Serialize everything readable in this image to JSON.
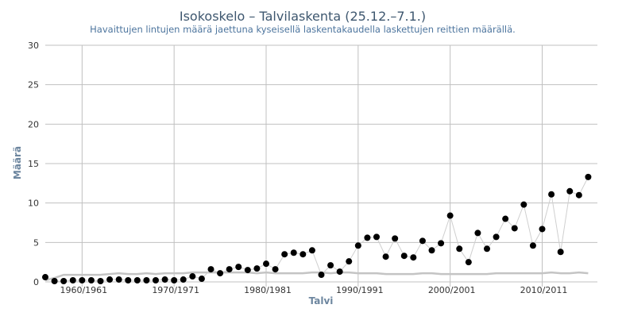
{
  "chart_data": {
    "type": "scatter",
    "title": "Isokoskelo – Talvilaskenta (25.12.–7.1.)",
    "subtitle": "Havaittujen lintujen määrä jaettuna kyseisellä laskentakaudella laskettujen reittien määrällä.",
    "xlabel": "Talvi",
    "ylabel": "Määrä",
    "ylim": [
      0,
      30
    ],
    "yticks": [
      0,
      5,
      10,
      15,
      20,
      25,
      30
    ],
    "xlim": [
      1956,
      2016
    ],
    "xticks": [
      {
        "x": 1960,
        "label": "1960/1961"
      },
      {
        "x": 1970,
        "label": "1970/1971"
      },
      {
        "x": 1980,
        "label": "1980/1981"
      },
      {
        "x": 1990,
        "label": "1990/1991"
      },
      {
        "x": 2000,
        "label": "2000/2001"
      },
      {
        "x": 2010,
        "label": "2010/2011"
      }
    ],
    "grid": true,
    "series": [
      {
        "values": [
          [
            1956,
            0.6
          ],
          [
            1957,
            0.1
          ],
          [
            1958,
            0.1
          ],
          [
            1959,
            0.2
          ],
          [
            1960,
            0.2
          ],
          [
            1961,
            0.2
          ],
          [
            1962,
            0.1
          ],
          [
            1963,
            0.3
          ],
          [
            1964,
            0.3
          ],
          [
            1965,
            0.2
          ],
          [
            1966,
            0.2
          ],
          [
            1967,
            0.2
          ],
          [
            1968,
            0.2
          ],
          [
            1969,
            0.3
          ],
          [
            1970,
            0.2
          ],
          [
            1971,
            0.3
          ],
          [
            1972,
            0.7
          ],
          [
            1973,
            0.4
          ],
          [
            1974,
            1.6
          ],
          [
            1975,
            1.1
          ],
          [
            1976,
            1.6
          ],
          [
            1977,
            1.9
          ],
          [
            1978,
            1.5
          ],
          [
            1979,
            1.7
          ],
          [
            1980,
            2.3
          ],
          [
            1981,
            1.6
          ],
          [
            1982,
            3.5
          ],
          [
            1983,
            3.7
          ],
          [
            1984,
            3.5
          ],
          [
            1985,
            4.0
          ],
          [
            1986,
            0.9
          ],
          [
            1987,
            2.1
          ],
          [
            1988,
            1.3
          ],
          [
            1989,
            2.6
          ],
          [
            1990,
            4.6
          ],
          [
            1991,
            5.6
          ],
          [
            1992,
            5.7
          ],
          [
            1993,
            3.2
          ],
          [
            1994,
            5.5
          ],
          [
            1995,
            3.3
          ],
          [
            1996,
            3.1
          ],
          [
            1997,
            5.2
          ],
          [
            1998,
            4.0
          ],
          [
            1999,
            4.9
          ],
          [
            2000,
            8.4
          ],
          [
            2001,
            4.2
          ],
          [
            2002,
            2.5
          ],
          [
            2003,
            6.2
          ],
          [
            2004,
            4.2
          ],
          [
            2005,
            5.7
          ],
          [
            2006,
            8.0
          ],
          [
            2007,
            6.8
          ],
          [
            2008,
            9.8
          ],
          [
            2009,
            4.6
          ],
          [
            2010,
            6.7
          ],
          [
            2011,
            11.1
          ],
          [
            2012,
            3.8
          ],
          [
            2013,
            11.5
          ],
          [
            2014,
            11.0
          ],
          [
            2015,
            13.3
          ]
        ]
      },
      {
        "values": [
          [
            1956,
            0.2
          ],
          [
            1957,
            0.5
          ],
          [
            1958,
            0.9
          ],
          [
            1959,
            0.9
          ],
          [
            1960,
            0.9
          ],
          [
            1961,
            0.9
          ],
          [
            1962,
            0.9
          ],
          [
            1963,
            1.0
          ],
          [
            1964,
            1.1
          ],
          [
            1965,
            1.0
          ],
          [
            1966,
            1.0
          ],
          [
            1967,
            1.1
          ],
          [
            1968,
            1.0
          ],
          [
            1969,
            1.1
          ],
          [
            1970,
            1.1
          ],
          [
            1971,
            1.1
          ],
          [
            1972,
            1.2
          ],
          [
            1973,
            1.2
          ],
          [
            1974,
            1.2
          ],
          [
            1975,
            1.2
          ],
          [
            1976,
            1.2
          ],
          [
            1977,
            1.2
          ],
          [
            1978,
            1.2
          ],
          [
            1979,
            1.1
          ],
          [
            1980,
            1.2
          ],
          [
            1981,
            1.1
          ],
          [
            1982,
            1.1
          ],
          [
            1983,
            1.1
          ],
          [
            1984,
            1.1
          ],
          [
            1985,
            1.2
          ],
          [
            1986,
            1.2
          ],
          [
            1987,
            1.1
          ],
          [
            1988,
            1.2
          ],
          [
            1989,
            1.2
          ],
          [
            1990,
            1.1
          ],
          [
            1991,
            1.1
          ],
          [
            1992,
            1.1
          ],
          [
            1993,
            1.0
          ],
          [
            1994,
            1.0
          ],
          [
            1995,
            1.0
          ],
          [
            1996,
            1.0
          ],
          [
            1997,
            1.1
          ],
          [
            1998,
            1.1
          ],
          [
            1999,
            1.0
          ],
          [
            2000,
            1.0
          ],
          [
            2001,
            1.0
          ],
          [
            2002,
            1.0
          ],
          [
            2003,
            1.0
          ],
          [
            2004,
            1.0
          ],
          [
            2005,
            1.1
          ],
          [
            2006,
            1.1
          ],
          [
            2007,
            1.1
          ],
          [
            2008,
            1.1
          ],
          [
            2009,
            1.1
          ],
          [
            2010,
            1.1
          ],
          [
            2011,
            1.2
          ],
          [
            2012,
            1.1
          ],
          [
            2013,
            1.1
          ],
          [
            2014,
            1.2
          ],
          [
            2015,
            1.1
          ]
        ]
      }
    ],
    "colors": {
      "points": "#000000",
      "connector": "#cfcfcf",
      "average_line": "#c4c4c4",
      "grid": "#c0c0c0",
      "title": "#3e576f",
      "subtitle": "#4d759e",
      "axis_title": "#6d869f"
    }
  }
}
